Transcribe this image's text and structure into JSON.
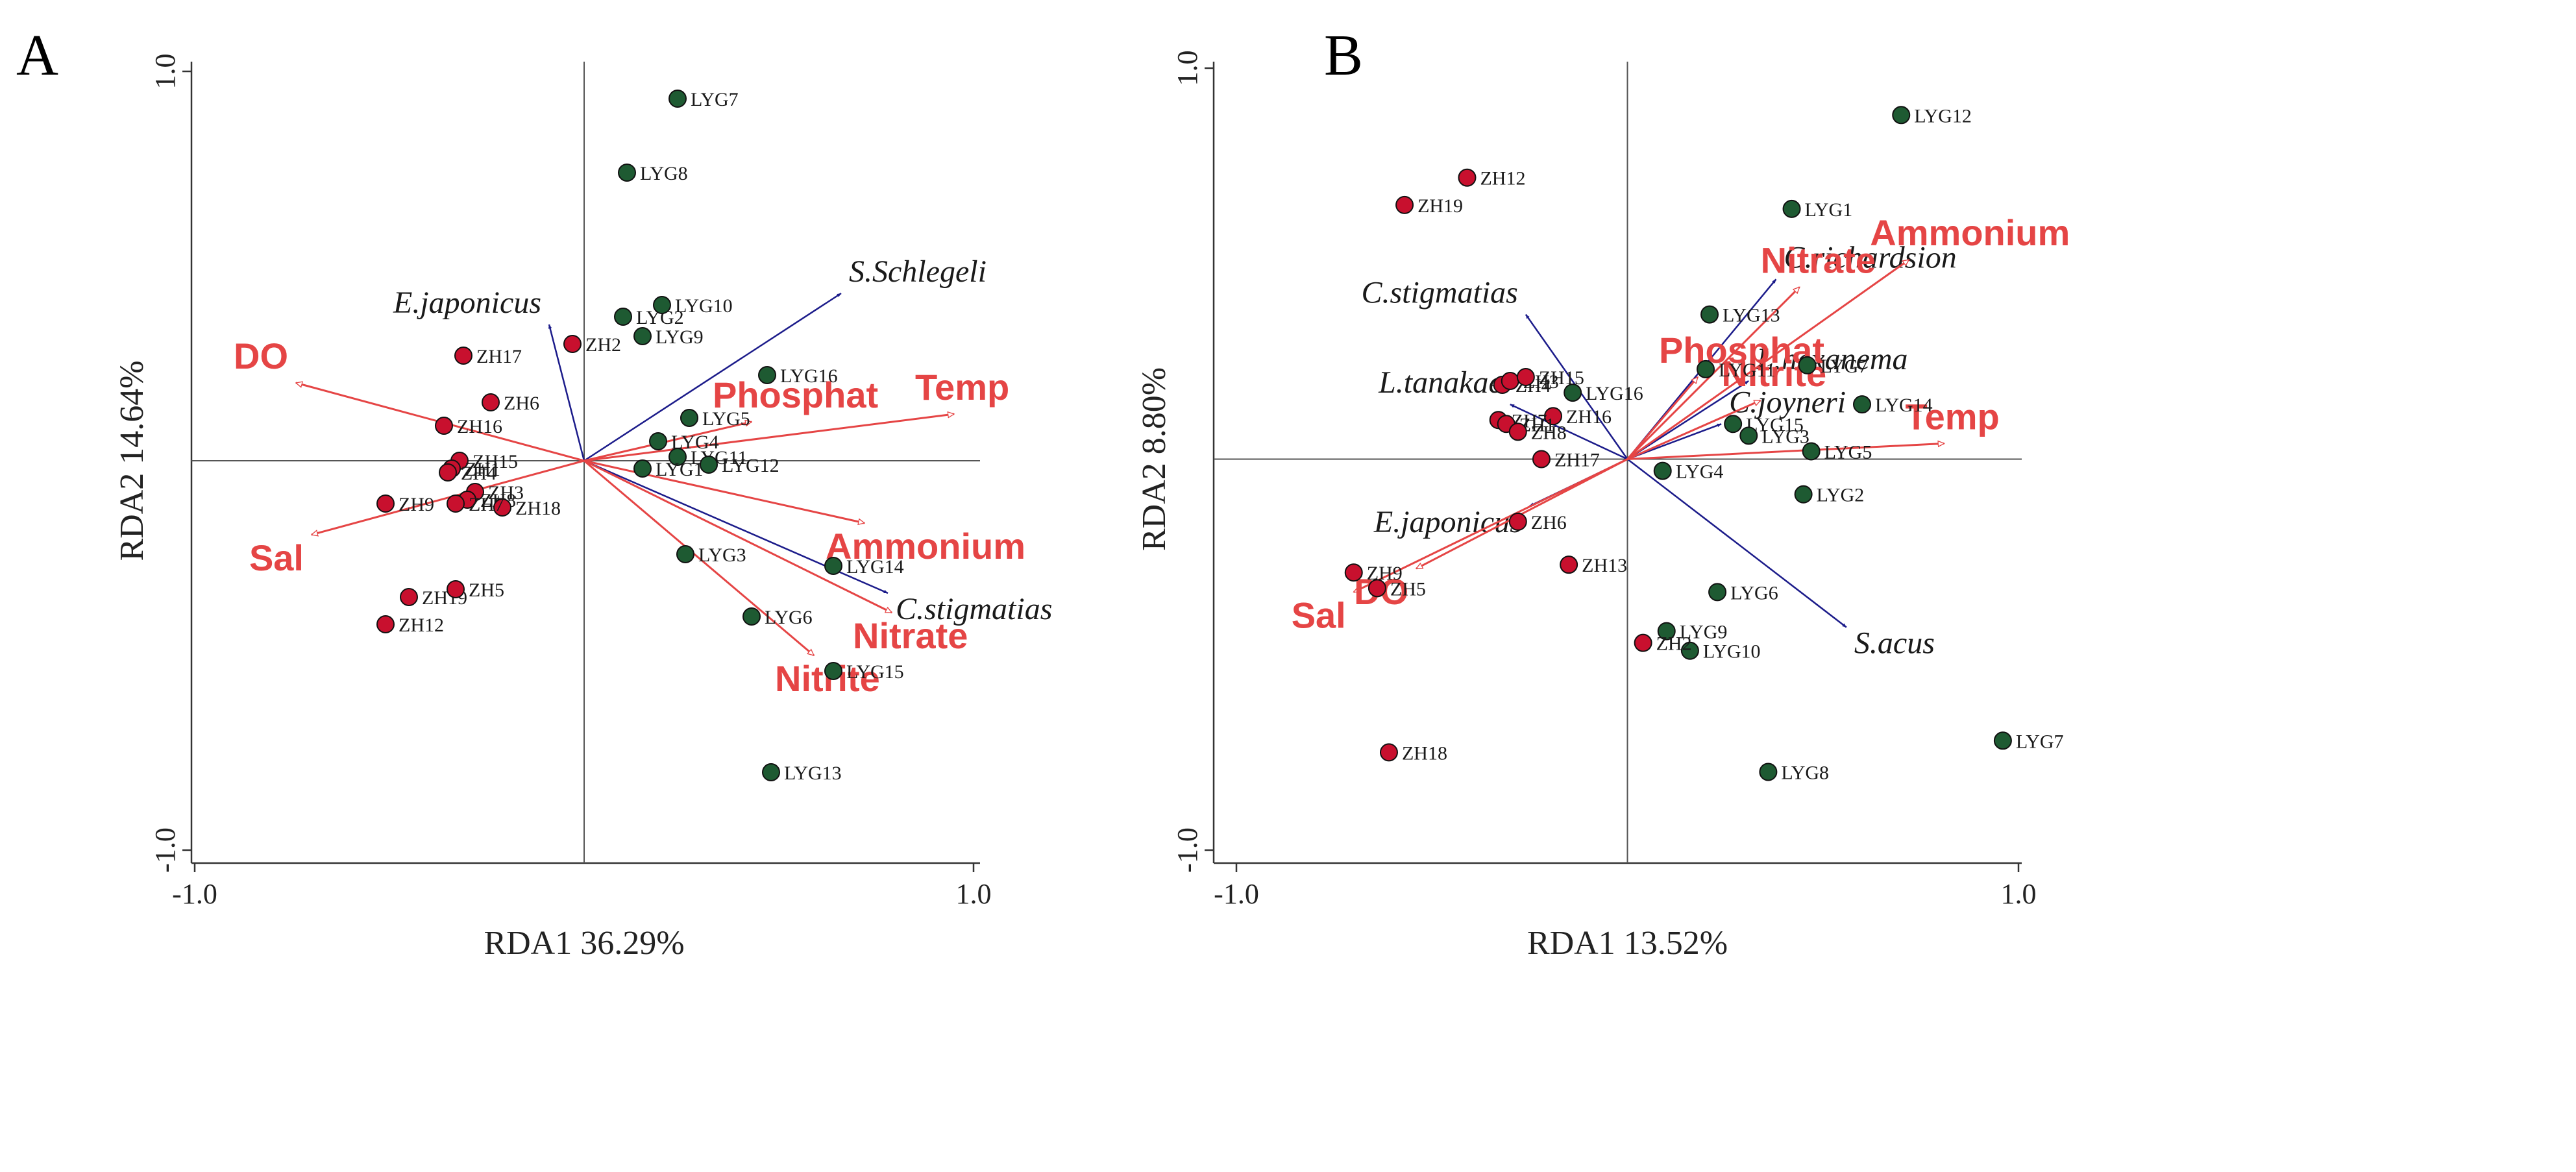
{
  "colors": {
    "red_site": "#c8102e",
    "green_site": "#1e5a32",
    "env_arrow": "#e54545",
    "species_arrow": "#1b1b8a",
    "axis": "#555555"
  },
  "chart_data": [
    {
      "type": "scatter",
      "panel": "A",
      "xlabel": "RDA1 36.29%",
      "ylabel": "RDA2 14.64%",
      "xlim": [
        -1.0,
        1.0
      ],
      "ylim": [
        -1.0,
        1.0
      ],
      "xticks": [
        "-1.0",
        "1.0"
      ],
      "yticks": [
        "1.0",
        "-1.0"
      ],
      "sites": [
        {
          "name": "LYG7",
          "x": 0.24,
          "y": 0.93,
          "group": "LYG"
        },
        {
          "name": "LYG8",
          "x": 0.11,
          "y": 0.74,
          "group": "LYG"
        },
        {
          "name": "LYG2",
          "x": 0.1,
          "y": 0.37,
          "group": "LYG"
        },
        {
          "name": "LYG10",
          "x": 0.2,
          "y": 0.4,
          "group": "LYG"
        },
        {
          "name": "LYG9",
          "x": 0.15,
          "y": 0.32,
          "group": "LYG"
        },
        {
          "name": "LYG16",
          "x": 0.47,
          "y": 0.22,
          "group": "LYG"
        },
        {
          "name": "LYG5",
          "x": 0.27,
          "y": 0.11,
          "group": "LYG"
        },
        {
          "name": "LYG4",
          "x": 0.19,
          "y": 0.05,
          "group": "LYG"
        },
        {
          "name": "LYG11",
          "x": 0.24,
          "y": 0.01,
          "group": "LYG"
        },
        {
          "name": "LYG1",
          "x": 0.15,
          "y": -0.02,
          "group": "LYG"
        },
        {
          "name": "LYG12",
          "x": 0.32,
          "y": -0.01,
          "group": "LYG"
        },
        {
          "name": "LYG3",
          "x": 0.26,
          "y": -0.24,
          "group": "LYG"
        },
        {
          "name": "LYG14",
          "x": 0.64,
          "y": -0.27,
          "group": "LYG"
        },
        {
          "name": "LYG6",
          "x": 0.43,
          "y": -0.4,
          "group": "LYG"
        },
        {
          "name": "LYG15",
          "x": 0.64,
          "y": -0.54,
          "group": "LYG"
        },
        {
          "name": "LYG13",
          "x": 0.48,
          "y": -0.8,
          "group": "LYG"
        },
        {
          "name": "ZH2",
          "x": -0.03,
          "y": 0.3,
          "group": "ZH"
        },
        {
          "name": "ZH17",
          "x": -0.31,
          "y": 0.27,
          "group": "ZH"
        },
        {
          "name": "ZH6",
          "x": -0.24,
          "y": 0.15,
          "group": "ZH"
        },
        {
          "name": "ZH16",
          "x": -0.36,
          "y": 0.09,
          "group": "ZH"
        },
        {
          "name": "ZH15",
          "x": -0.32,
          "y": 0.0,
          "group": "ZH"
        },
        {
          "name": "ZH1",
          "x": -0.34,
          "y": -0.02,
          "group": "ZH"
        },
        {
          "name": "ZH4",
          "x": -0.35,
          "y": -0.03,
          "group": "ZH"
        },
        {
          "name": "ZH3",
          "x": -0.28,
          "y": -0.08,
          "group": "ZH"
        },
        {
          "name": "ZH8",
          "x": -0.3,
          "y": -0.1,
          "group": "ZH"
        },
        {
          "name": "ZH18",
          "x": -0.21,
          "y": -0.12,
          "group": "ZH"
        },
        {
          "name": "ZH7",
          "x": -0.33,
          "y": -0.11,
          "group": "ZH"
        },
        {
          "name": "ZH9",
          "x": -0.51,
          "y": -0.11,
          "group": "ZH"
        },
        {
          "name": "ZH19",
          "x": -0.45,
          "y": -0.35,
          "group": "ZH"
        },
        {
          "name": "ZH5",
          "x": -0.33,
          "y": -0.33,
          "group": "ZH"
        },
        {
          "name": "ZH12",
          "x": -0.51,
          "y": -0.42,
          "group": "ZH"
        }
      ],
      "env_vectors": [
        {
          "name": "DO",
          "x": -0.74,
          "y": 0.2
        },
        {
          "name": "Sal",
          "x": -0.7,
          "y": -0.19
        },
        {
          "name": "Phosphat",
          "x": 0.43,
          "y": 0.1
        },
        {
          "name": "Temp",
          "x": 0.95,
          "y": 0.12
        },
        {
          "name": "Ammonium",
          "x": 0.72,
          "y": -0.16
        },
        {
          "name": "Nitrate",
          "x": 0.79,
          "y": -0.39
        },
        {
          "name": "Nitrite",
          "x": 0.59,
          "y": -0.5
        }
      ],
      "species_vectors": [
        {
          "name": "E.japonicus",
          "x": -0.09,
          "y": 0.35
        },
        {
          "name": "S.Schlegeli",
          "x": 0.66,
          "y": 0.43
        },
        {
          "name": "C.stigmatias",
          "x": 0.78,
          "y": -0.34
        }
      ]
    },
    {
      "type": "scatter",
      "panel": "B",
      "xlabel": "RDA1 13.52%",
      "ylabel": "RDA2 8.80%",
      "xlim": [
        -1.0,
        1.0
      ],
      "ylim": [
        -1.0,
        1.0
      ],
      "xticks": [
        "-1.0",
        "1.0"
      ],
      "yticks": [
        "1.0",
        "-1.0"
      ],
      "sites": [
        {
          "name": "LYG12",
          "x": 0.7,
          "y": 0.88,
          "group": "LYG"
        },
        {
          "name": "LYG1",
          "x": 0.42,
          "y": 0.64,
          "group": "LYG"
        },
        {
          "name": "LYG13",
          "x": 0.21,
          "y": 0.37,
          "group": "LYG"
        },
        {
          "name": "LYG11",
          "x": 0.2,
          "y": 0.23,
          "group": "LYG"
        },
        {
          "name": "LYG7",
          "x": 0.46,
          "y": 0.24,
          "group": "LYG"
        },
        {
          "name": "LYG16",
          "x": -0.14,
          "y": 0.17,
          "group": "LYG"
        },
        {
          "name": "LYG15",
          "x": 0.27,
          "y": 0.09,
          "group": "LYG"
        },
        {
          "name": "LYG14",
          "x": 0.6,
          "y": 0.14,
          "group": "LYG"
        },
        {
          "name": "LYG3",
          "x": 0.31,
          "y": 0.06,
          "group": "LYG"
        },
        {
          "name": "LYG5",
          "x": 0.47,
          "y": 0.02,
          "group": "LYG"
        },
        {
          "name": "LYG4",
          "x": 0.09,
          "y": -0.03,
          "group": "LYG"
        },
        {
          "name": "LYG2",
          "x": 0.45,
          "y": -0.09,
          "group": "LYG"
        },
        {
          "name": "LYG6",
          "x": 0.23,
          "y": -0.34,
          "group": "LYG"
        },
        {
          "name": "LYG9",
          "x": 0.1,
          "y": -0.44,
          "group": "LYG"
        },
        {
          "name": "LYG10",
          "x": 0.16,
          "y": -0.49,
          "group": "LYG"
        },
        {
          "name": "LYG8",
          "x": 0.36,
          "y": -0.8,
          "group": "LYG"
        },
        {
          "name": "LYG7",
          "x": 0.96,
          "y": -0.72,
          "group": "LYG"
        },
        {
          "name": "ZH12",
          "x": -0.41,
          "y": 0.72,
          "group": "ZH"
        },
        {
          "name": "ZH19",
          "x": -0.57,
          "y": 0.65,
          "group": "ZH"
        },
        {
          "name": "ZH4",
          "x": -0.32,
          "y": 0.19,
          "group": "ZH"
        },
        {
          "name": "ZH3",
          "x": -0.3,
          "y": 0.2,
          "group": "ZH"
        },
        {
          "name": "ZH15",
          "x": -0.26,
          "y": 0.21,
          "group": "ZH"
        },
        {
          "name": "ZH16",
          "x": -0.19,
          "y": 0.11,
          "group": "ZH"
        },
        {
          "name": "ZH7",
          "x": -0.33,
          "y": 0.1,
          "group": "ZH"
        },
        {
          "name": "ZH1",
          "x": -0.31,
          "y": 0.09,
          "group": "ZH"
        },
        {
          "name": "ZH8",
          "x": -0.28,
          "y": 0.07,
          "group": "ZH"
        },
        {
          "name": "ZH17",
          "x": -0.22,
          "y": 0.0,
          "group": "ZH"
        },
        {
          "name": "ZH6",
          "x": -0.28,
          "y": -0.16,
          "group": "ZH"
        },
        {
          "name": "ZH13",
          "x": -0.15,
          "y": -0.27,
          "group": "ZH"
        },
        {
          "name": "ZH9",
          "x": -0.7,
          "y": -0.29,
          "group": "ZH"
        },
        {
          "name": "ZH5",
          "x": -0.64,
          "y": -0.33,
          "group": "ZH"
        },
        {
          "name": "ZH2",
          "x": 0.04,
          "y": -0.47,
          "group": "ZH"
        },
        {
          "name": "ZH18",
          "x": -0.61,
          "y": -0.75,
          "group": "ZH"
        }
      ],
      "env_vectors": [
        {
          "name": "Ammonium",
          "x": 0.72,
          "y": 0.51
        },
        {
          "name": "Nitrate",
          "x": 0.44,
          "y": 0.44
        },
        {
          "name": "Phosphat",
          "x": 0.18,
          "y": 0.21
        },
        {
          "name": "Nitrite",
          "x": 0.34,
          "y": 0.15
        },
        {
          "name": "Temp",
          "x": 0.81,
          "y": 0.04
        },
        {
          "name": "Sal",
          "x": -0.7,
          "y": -0.34
        },
        {
          "name": "DO",
          "x": -0.54,
          "y": -0.28
        }
      ],
      "species_vectors": [
        {
          "name": "C.stigmatias",
          "x": -0.26,
          "y": 0.37
        },
        {
          "name": "C.richardsion",
          "x": 0.38,
          "y": 0.46
        },
        {
          "name": "L.hexanema",
          "x": 0.31,
          "y": 0.2
        },
        {
          "name": "L.tanakae",
          "x": -0.3,
          "y": 0.14
        },
        {
          "name": "C.joyneri",
          "x": 0.24,
          "y": 0.09
        },
        {
          "name": "E.japonicus",
          "x": -0.25,
          "y": -0.12
        },
        {
          "name": "S.acus",
          "x": 0.56,
          "y": -0.43
        }
      ]
    }
  ]
}
